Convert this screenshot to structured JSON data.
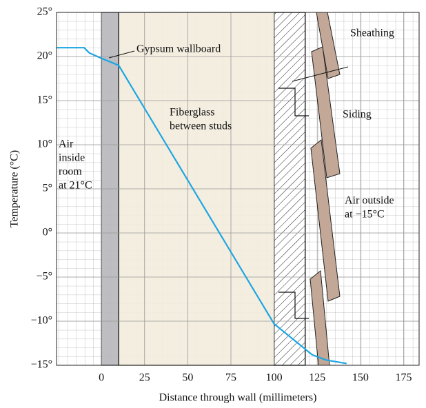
{
  "chart_data": {
    "type": "line",
    "x_label": "Distance through wall (millimeters)",
    "y_label": "Temperature (°C)",
    "xlim": [
      -26,
      184
    ],
    "ylim": [
      -15,
      25
    ],
    "xticks": [
      0,
      25,
      50,
      75,
      100,
      125,
      150,
      175
    ],
    "yticks": [
      {
        "value": 25,
        "label": "25°"
      },
      {
        "value": 20,
        "label": "20°"
      },
      {
        "value": 15,
        "label": "15°"
      },
      {
        "value": 10,
        "label": "10°"
      },
      {
        "value": 5,
        "label": "5°"
      },
      {
        "value": 0,
        "label": "0°"
      },
      {
        "value": -5,
        "label": "−5°"
      },
      {
        "value": -10,
        "label": "−10°"
      },
      {
        "value": -15,
        "label": "−15°"
      }
    ],
    "grid": true,
    "regions": [
      {
        "x": [
          0,
          10
        ],
        "color": "#b9b9bd"
      },
      {
        "x": [
          10,
          100
        ],
        "color": "#f3eddd"
      },
      {
        "x": [
          100,
          118
        ],
        "color": "#ffffff"
      }
    ],
    "series": [
      {
        "color": "#1ea5e2",
        "x": [
          -26,
          -10,
          -7,
          0,
          10,
          100,
          122,
          130,
          142
        ],
        "values": [
          21,
          21,
          20.4,
          19.8,
          19,
          -10.3,
          -13.8,
          -14.4,
          -14.8
        ]
      }
    ],
    "annotations": {
      "gypsum": "Gypsum wallboard",
      "fiberglass": [
        "Fiberglass",
        "between studs"
      ],
      "air_inside": [
        "Air",
        "inside",
        "room",
        "at 21°C"
      ],
      "sheathing": "Sheathing",
      "siding": "Siding",
      "air_outside": [
        "Air outside",
        "at −15°C"
      ]
    }
  }
}
